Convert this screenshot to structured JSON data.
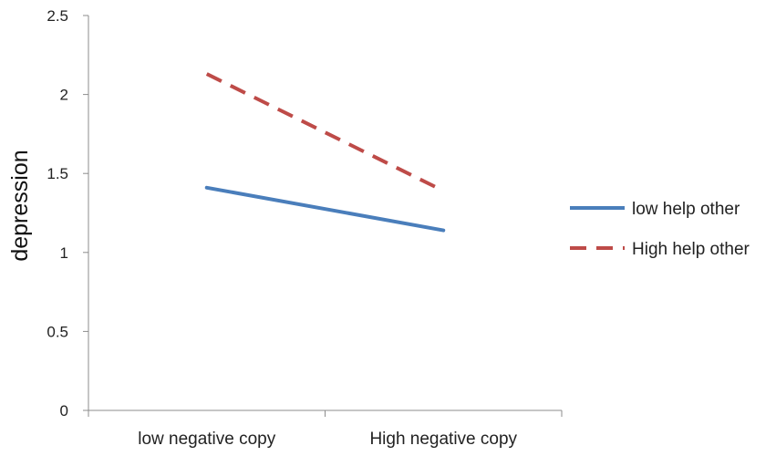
{
  "chart_data": {
    "type": "line",
    "title": "",
    "xlabel": "",
    "ylabel": "depression",
    "categories": [
      "low negative copy",
      "High negative copy"
    ],
    "ylim": [
      0,
      2.5
    ],
    "yticks": [
      "0",
      "0.5",
      "1",
      "1.5",
      "2",
      "2.5"
    ],
    "grid": false,
    "legend_position": "right",
    "series": [
      {
        "name": "low help other",
        "values": [
          1.41,
          1.14
        ],
        "color": "#4a7ebb",
        "style": "solid"
      },
      {
        "name": "High help other",
        "values": [
          2.13,
          1.39
        ],
        "color": "#be4b48",
        "style": "dashed"
      }
    ]
  }
}
